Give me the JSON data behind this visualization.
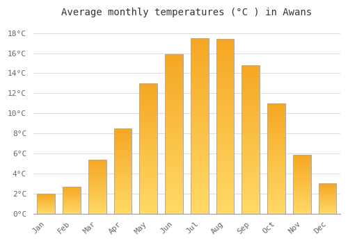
{
  "title": "Average monthly temperatures (°C ) in Awans",
  "months": [
    "Jan",
    "Feb",
    "Mar",
    "Apr",
    "May",
    "Jun",
    "Jul",
    "Aug",
    "Sep",
    "Oct",
    "Nov",
    "Dec"
  ],
  "values": [
    2.0,
    2.7,
    5.4,
    8.5,
    13.0,
    15.9,
    17.5,
    17.4,
    14.8,
    11.0,
    5.9,
    3.0
  ],
  "bar_color_top": "#F5A623",
  "bar_color_bottom": "#FFD966",
  "bar_edge_color": "#AAAAAA",
  "background_color": "#FFFFFF",
  "grid_color": "#DDDDDD",
  "ylim": [
    0,
    19
  ],
  "yticks": [
    0,
    2,
    4,
    6,
    8,
    10,
    12,
    14,
    16,
    18
  ],
  "title_fontsize": 10,
  "tick_fontsize": 8,
  "tick_color": "#666666",
  "font_family": "monospace",
  "bar_width": 0.7
}
